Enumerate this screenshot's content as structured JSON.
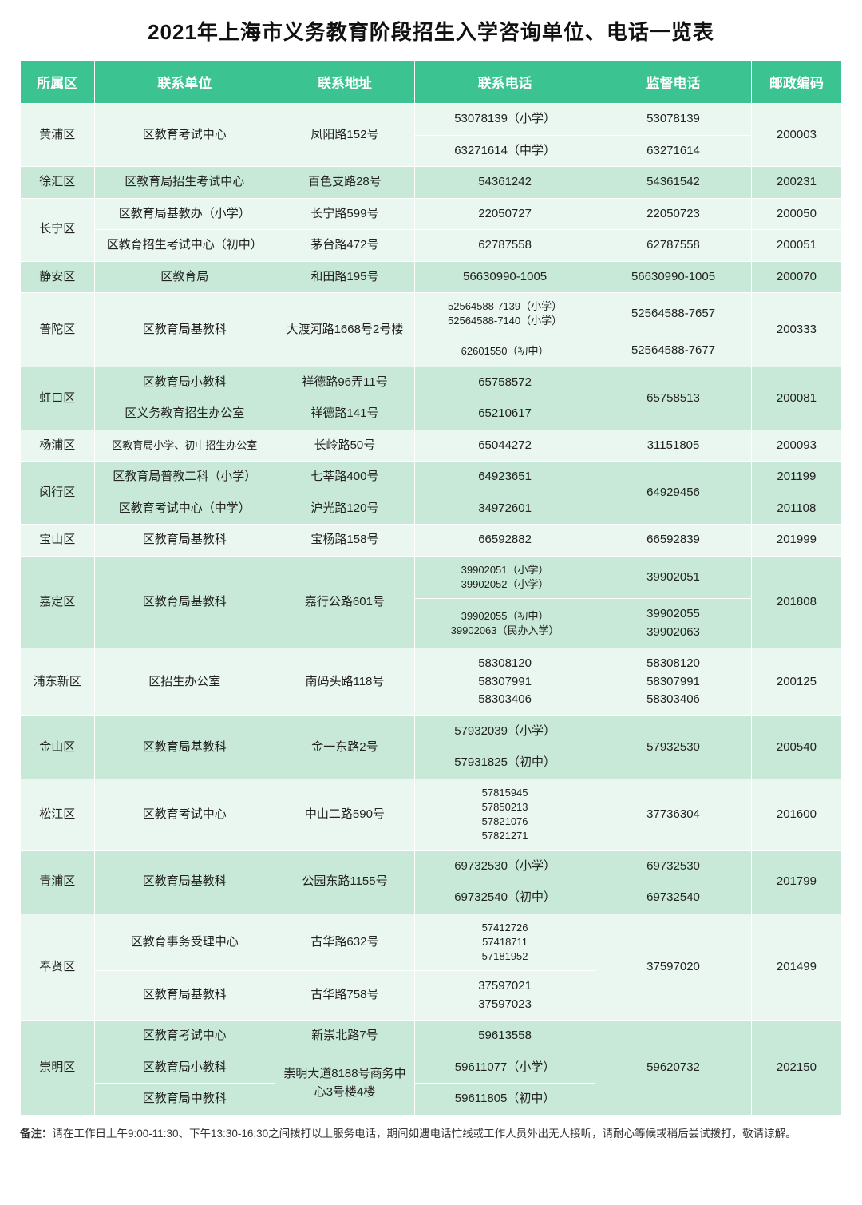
{
  "title": "2021年上海市义务教育阶段招生入学咨询单位、电话一览表",
  "columns": [
    "所属区",
    "联系单位",
    "联系地址",
    "联系电话",
    "监督电话",
    "邮政编码"
  ],
  "col_widths": [
    "90",
    "220",
    "170",
    "220",
    "190",
    "110"
  ],
  "note_label": "备注：",
  "note_text": "请在工作日上午9:00-11:30、下午13:30-16:30之间拨打以上服务电话，期间如遇电话忙线或工作人员外出无人接听，请耐心等候或稍后尝试拨打，敬请谅解。",
  "rows": [
    {
      "c": 0,
      "cells": [
        {
          "t": "黄浦区",
          "rs": 2
        },
        {
          "t": "区教育考试中心",
          "rs": 2
        },
        {
          "t": "凤阳路152号",
          "rs": 2
        },
        {
          "t": "53078139（小学）"
        },
        {
          "t": "53078139"
        },
        {
          "t": "200003",
          "rs": 2
        }
      ]
    },
    {
      "c": 0,
      "cells": [
        {
          "t": "63271614（中学）"
        },
        {
          "t": "63271614"
        }
      ]
    },
    {
      "c": 1,
      "cells": [
        {
          "t": "徐汇区"
        },
        {
          "t": "区教育局招生考试中心"
        },
        {
          "t": "百色支路28号"
        },
        {
          "t": "54361242"
        },
        {
          "t": "54361542"
        },
        {
          "t": "200231"
        }
      ]
    },
    {
      "c": 0,
      "cells": [
        {
          "t": "长宁区",
          "rs": 2
        },
        {
          "t": "区教育局基教办（小学）"
        },
        {
          "t": "长宁路599号"
        },
        {
          "t": "22050727"
        },
        {
          "t": "22050723"
        },
        {
          "t": "200050"
        }
      ]
    },
    {
      "c": 0,
      "cells": [
        {
          "t": "区教育招生考试中心（初中）"
        },
        {
          "t": "茅台路472号"
        },
        {
          "t": "62787558"
        },
        {
          "t": "62787558"
        },
        {
          "t": "200051"
        }
      ]
    },
    {
      "c": 1,
      "cells": [
        {
          "t": "静安区"
        },
        {
          "t": "区教育局"
        },
        {
          "t": "和田路195号"
        },
        {
          "t": "56630990-1005"
        },
        {
          "t": "56630990-1005"
        },
        {
          "t": "200070"
        }
      ]
    },
    {
      "c": 0,
      "cells": [
        {
          "t": "普陀区",
          "rs": 2
        },
        {
          "t": "区教育局基教科",
          "rs": 2
        },
        {
          "t": "大渡河路1668号2号楼",
          "rs": 2
        },
        {
          "t": "52564588-7139（小学）<br>52564588-7140（小学）",
          "sm": 1
        },
        {
          "t": "52564588-7657"
        },
        {
          "t": "200333",
          "rs": 2
        }
      ]
    },
    {
      "c": 0,
      "cells": [
        {
          "t": "62601550（初中）",
          "sm": 1
        },
        {
          "t": "52564588-7677"
        }
      ]
    },
    {
      "c": 1,
      "cells": [
        {
          "t": "虹口区",
          "rs": 2
        },
        {
          "t": "区教育局小教科"
        },
        {
          "t": "祥德路96弄11号"
        },
        {
          "t": "65758572"
        },
        {
          "t": "65758513",
          "rs": 2
        },
        {
          "t": "200081",
          "rs": 2
        }
      ]
    },
    {
      "c": 1,
      "cells": [
        {
          "t": "区义务教育招生办公室"
        },
        {
          "t": "祥德路141号"
        },
        {
          "t": "65210617"
        }
      ]
    },
    {
      "c": 0,
      "cells": [
        {
          "t": "杨浦区"
        },
        {
          "t": "区教育局小学、初中招生办公室",
          "sm": 1
        },
        {
          "t": "长岭路50号"
        },
        {
          "t": "65044272"
        },
        {
          "t": "31151805"
        },
        {
          "t": "200093"
        }
      ]
    },
    {
      "c": 1,
      "cells": [
        {
          "t": "闵行区",
          "rs": 2
        },
        {
          "t": "区教育局普教二科（小学）"
        },
        {
          "t": "七莘路400号"
        },
        {
          "t": "64923651"
        },
        {
          "t": "64929456",
          "rs": 2
        },
        {
          "t": "201199"
        }
      ]
    },
    {
      "c": 1,
      "cells": [
        {
          "t": "区教育考试中心（中学）"
        },
        {
          "t": "沪光路120号"
        },
        {
          "t": "34972601"
        },
        {
          "t": "201108"
        }
      ]
    },
    {
      "c": 0,
      "cells": [
        {
          "t": "宝山区"
        },
        {
          "t": "区教育局基教科"
        },
        {
          "t": "宝杨路158号"
        },
        {
          "t": "66592882"
        },
        {
          "t": "66592839"
        },
        {
          "t": "201999"
        }
      ]
    },
    {
      "c": 1,
      "cells": [
        {
          "t": "嘉定区",
          "rs": 2
        },
        {
          "t": "区教育局基教科",
          "rs": 2
        },
        {
          "t": "嘉行公路601号",
          "rs": 2
        },
        {
          "t": "39902051（小学）<br>39902052（小学）",
          "sm": 1
        },
        {
          "t": "39902051"
        },
        {
          "t": "201808",
          "rs": 2
        }
      ]
    },
    {
      "c": 1,
      "cells": [
        {
          "t": "39902055（初中）<br>39902063（民办入学）",
          "sm": 1
        },
        {
          "t": "39902055<br>39902063"
        }
      ]
    },
    {
      "c": 0,
      "cells": [
        {
          "t": "浦东新区"
        },
        {
          "t": "区招生办公室"
        },
        {
          "t": "南码头路118号"
        },
        {
          "t": "58308120<br>58307991<br>58303406"
        },
        {
          "t": "58308120<br>58307991<br>58303406"
        },
        {
          "t": "200125"
        }
      ]
    },
    {
      "c": 1,
      "cells": [
        {
          "t": "金山区",
          "rs": 2
        },
        {
          "t": "区教育局基教科",
          "rs": 2
        },
        {
          "t": "金一东路2号",
          "rs": 2
        },
        {
          "t": "57932039（小学）"
        },
        {
          "t": "57932530",
          "rs": 2
        },
        {
          "t": "200540",
          "rs": 2
        }
      ]
    },
    {
      "c": 1,
      "cells": [
        {
          "t": "57931825（初中）"
        }
      ]
    },
    {
      "c": 0,
      "cells": [
        {
          "t": "松江区"
        },
        {
          "t": "区教育考试中心"
        },
        {
          "t": "中山二路590号"
        },
        {
          "t": "57815945<br>57850213<br>57821076<br>57821271",
          "sm": 1
        },
        {
          "t": "37736304"
        },
        {
          "t": "201600"
        }
      ]
    },
    {
      "c": 1,
      "cells": [
        {
          "t": "青浦区",
          "rs": 2
        },
        {
          "t": "区教育局基教科",
          "rs": 2
        },
        {
          "t": "公园东路1155号",
          "rs": 2
        },
        {
          "t": "69732530（小学）"
        },
        {
          "t": "69732530"
        },
        {
          "t": "201799",
          "rs": 2
        }
      ]
    },
    {
      "c": 1,
      "cells": [
        {
          "t": "69732540（初中）"
        },
        {
          "t": "69732540"
        }
      ]
    },
    {
      "c": 0,
      "cells": [
        {
          "t": "奉贤区",
          "rs": 2
        },
        {
          "t": "区教育事务受理中心"
        },
        {
          "t": "古华路632号"
        },
        {
          "t": "57412726<br>57418711<br>57181952",
          "sm": 1
        },
        {
          "t": "37597020",
          "rs": 2
        },
        {
          "t": "201499",
          "rs": 2
        }
      ]
    },
    {
      "c": 0,
      "cells": [
        {
          "t": "区教育局基教科"
        },
        {
          "t": "古华路758号"
        },
        {
          "t": "37597021<br>37597023"
        }
      ]
    },
    {
      "c": 1,
      "cells": [
        {
          "t": "崇明区",
          "rs": 3
        },
        {
          "t": "区教育考试中心"
        },
        {
          "t": "新崇北路7号"
        },
        {
          "t": "59613558"
        },
        {
          "t": "59620732",
          "rs": 3
        },
        {
          "t": "202150",
          "rs": 3
        }
      ]
    },
    {
      "c": 1,
      "cells": [
        {
          "t": "区教育局小教科"
        },
        {
          "t": "崇明大道8188号商务中心3号楼4楼",
          "rs": 2
        },
        {
          "t": "59611077（小学）"
        }
      ]
    },
    {
      "c": 1,
      "cells": [
        {
          "t": "区教育局中教科"
        },
        {
          "t": "59611805（初中）"
        }
      ]
    }
  ]
}
